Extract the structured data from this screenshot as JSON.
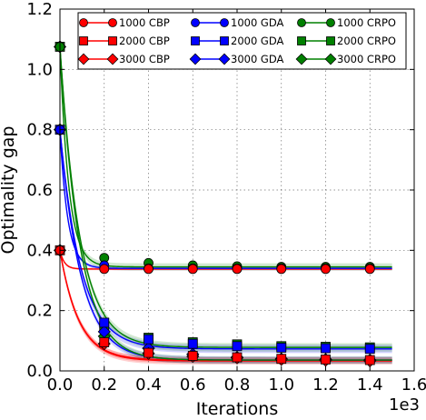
{
  "chart_data": {
    "type": "line",
    "xlabel": "Iterations",
    "ylabel": "Optimality gap",
    "x_multiplier_label": "1e3",
    "xlim": [
      0,
      1.6
    ],
    "ylim": [
      0,
      1.2
    ],
    "x_ticks": [
      0.0,
      0.2,
      0.4,
      0.6,
      0.8,
      1.0,
      1.2,
      1.4,
      1.6
    ],
    "x_tick_labels": [
      "0.0",
      "0.2",
      "0.4",
      "0.6",
      "0.8",
      "1.0",
      "1.2",
      "1.4",
      "1.6"
    ],
    "y_ticks": [
      0.0,
      0.2,
      0.4,
      0.6,
      0.8,
      1.0,
      1.2
    ],
    "y_tick_labels": [
      "0.0",
      "0.2",
      "0.4",
      "0.6",
      "0.8",
      "1.0",
      "1.2"
    ],
    "grid": true,
    "legend_position": "top",
    "legend_columns": 3,
    "marker_x": [
      0.0,
      0.2,
      0.4,
      0.6,
      0.8,
      1.0,
      1.2,
      1.4
    ],
    "series": [
      {
        "name": "1000 CBP",
        "color": "#ff0000",
        "marker": "circle",
        "start": 0.4,
        "plateau": 0.338,
        "tau": 0.02,
        "band": 0.004,
        "values": [
          0.4,
          0.338,
          0.338,
          0.338,
          0.338,
          0.338,
          0.338,
          0.338
        ]
      },
      {
        "name": "2000 CBP",
        "color": "#ff0000",
        "marker": "square",
        "start": 0.4,
        "plateau": 0.036,
        "tau": 0.085,
        "band": 0.01,
        "values": [
          0.4,
          0.095,
          0.06,
          0.05,
          0.045,
          0.04,
          0.038,
          0.036
        ]
      },
      {
        "name": "3000 CBP",
        "color": "#ff0000",
        "marker": "diamond",
        "start": 0.4,
        "plateau": 0.033,
        "tau": 0.085,
        "band": 0.012,
        "values": [
          0.4,
          0.09,
          0.058,
          0.048,
          0.043,
          0.038,
          0.035,
          0.033
        ]
      },
      {
        "name": "1000 GDA",
        "color": "#0000ff",
        "marker": "circle",
        "start": 0.8,
        "plateau": 0.34,
        "tau": 0.035,
        "band": 0.006,
        "values": [
          0.8,
          0.35,
          0.34,
          0.34,
          0.34,
          0.34,
          0.34,
          0.34
        ]
      },
      {
        "name": "2000 GDA",
        "color": "#0000ff",
        "marker": "square",
        "start": 0.8,
        "plateau": 0.073,
        "tau": 0.095,
        "band": 0.014,
        "values": [
          0.8,
          0.16,
          0.105,
          0.09,
          0.082,
          0.077,
          0.075,
          0.073
        ]
      },
      {
        "name": "3000 GDA",
        "color": "#0000ff",
        "marker": "diamond",
        "start": 0.8,
        "plateau": 0.036,
        "tau": 0.095,
        "band": 0.012,
        "values": [
          0.8,
          0.13,
          0.075,
          0.055,
          0.045,
          0.04,
          0.038,
          0.036
        ]
      },
      {
        "name": "1000 CRPO",
        "color": "#008000",
        "marker": "circle",
        "start": 1.075,
        "plateau": 0.345,
        "tau": 0.04,
        "band": 0.012,
        "values": [
          1.075,
          0.375,
          0.358,
          0.35,
          0.347,
          0.345,
          0.345,
          0.345
        ]
      },
      {
        "name": "2000 CRPO",
        "color": "#008000",
        "marker": "square",
        "start": 1.075,
        "plateau": 0.078,
        "tau": 0.09,
        "band": 0.014,
        "values": [
          1.075,
          0.15,
          0.11,
          0.095,
          0.088,
          0.082,
          0.08,
          0.078
        ]
      },
      {
        "name": "3000 CRPO",
        "color": "#008000",
        "marker": "diamond",
        "start": 1.075,
        "plateau": 0.036,
        "tau": 0.09,
        "band": 0.012,
        "values": [
          1.075,
          0.115,
          0.075,
          0.055,
          0.045,
          0.04,
          0.038,
          0.036
        ]
      }
    ]
  }
}
